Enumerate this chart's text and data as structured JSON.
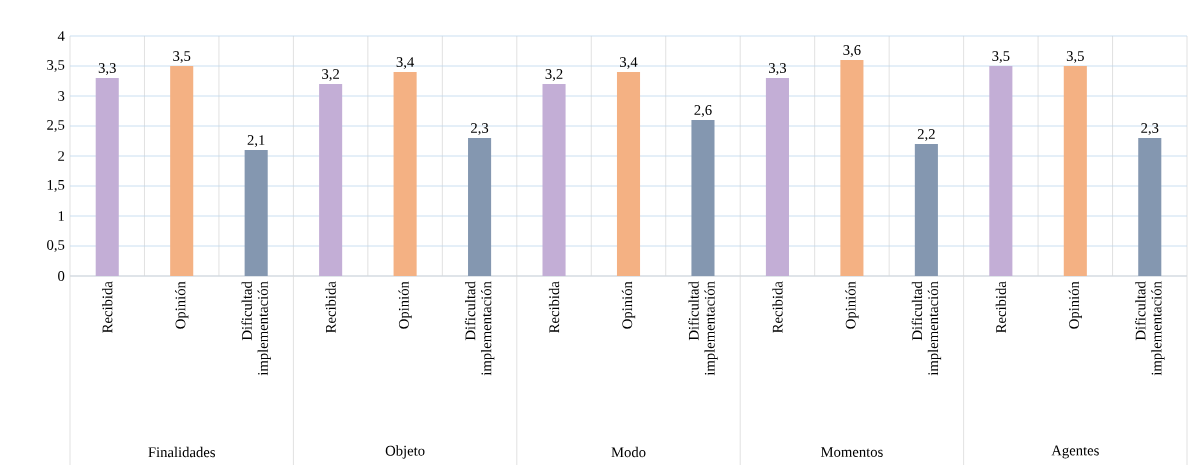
{
  "chart_data": {
    "type": "bar",
    "categories": [
      "Recibida",
      "Opinión",
      "Dificultad implementación",
      "Recibida",
      "Opinión",
      "Dificultad implementación",
      "Recibida",
      "Opinión",
      "Dificultad implementación",
      "Recibida",
      "Opinión",
      "Dificultad implementación",
      "Recibida",
      "Opinión",
      "Dificultad implementación"
    ],
    "values": [
      3.3,
      3.5,
      2.1,
      3.2,
      3.4,
      2.3,
      3.2,
      3.4,
      2.6,
      3.3,
      3.6,
      2.2,
      3.5,
      3.5,
      2.3
    ],
    "value_labels": [
      "3,3",
      "3,5",
      "2,1",
      "3,2",
      "3,4",
      "2,3",
      "3,2",
      "3,4",
      "2,6",
      "3,3",
      "3,6",
      "2,2",
      "3,5",
      "3,5",
      "2,3"
    ],
    "colors": [
      "#c3aed6",
      "#f4b183",
      "#8497b0",
      "#c3aed6",
      "#f4b183",
      "#8497b0",
      "#c3aed6",
      "#f4b183",
      "#8497b0",
      "#c3aed6",
      "#f4b183",
      "#8497b0",
      "#c3aed6",
      "#f4b183",
      "#8497b0"
    ],
    "annotations": [
      "Finalidades",
      "Objeto",
      "Modo",
      "Momentos",
      "Agentes"
    ],
    "ylim": [
      0,
      4
    ],
    "yticks": [
      0,
      {
        "value": 0.5,
        "label": "0,5"
      },
      1,
      {
        "value": 1.5,
        "label": "1,5"
      },
      2,
      {
        "value": 2.5,
        "label": "2,5"
      },
      3,
      {
        "value": 3.5,
        "label": "3,5"
      },
      4
    ],
    "grid": "y"
  }
}
